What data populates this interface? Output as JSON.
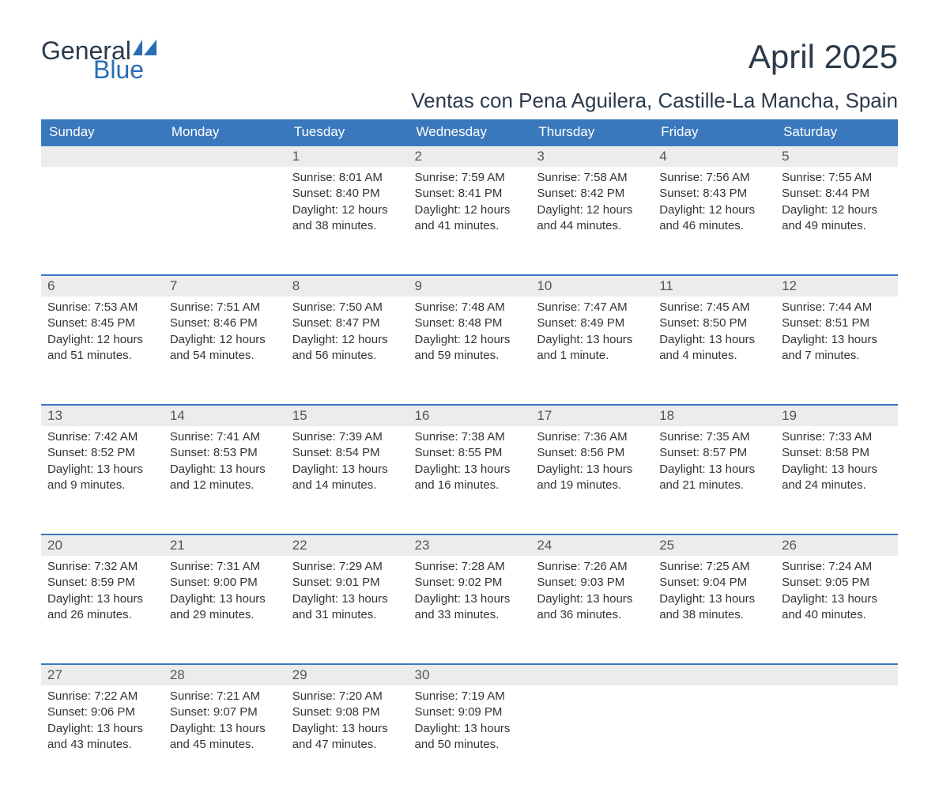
{
  "logo": {
    "textTop": "General",
    "textBottom": "Blue"
  },
  "title": "April 2025",
  "subtitle": "Ventas con Pena Aguilera, Castille-La Mancha, Spain",
  "colors": {
    "headerBg": "#3a78bd",
    "headerText": "#ffffff",
    "dayBarBg": "#ececec",
    "dayBarBorder": "#3a78bd",
    "bodyText": "#333333",
    "logoDark": "#2b3a4a",
    "logoBlue": "#2a6db6"
  },
  "fontsize": {
    "title": 42,
    "subtitle": 26,
    "header": 17,
    "daynum": 17,
    "body": 15
  },
  "weekdays": [
    "Sunday",
    "Monday",
    "Tuesday",
    "Wednesday",
    "Thursday",
    "Friday",
    "Saturday"
  ],
  "weeks": [
    [
      {
        "day": "",
        "lines": [
          "",
          "",
          "",
          ""
        ]
      },
      {
        "day": "",
        "lines": [
          "",
          "",
          "",
          ""
        ]
      },
      {
        "day": "1",
        "lines": [
          "Sunrise: 8:01 AM",
          "Sunset: 8:40 PM",
          "Daylight: 12 hours",
          "and 38 minutes."
        ]
      },
      {
        "day": "2",
        "lines": [
          "Sunrise: 7:59 AM",
          "Sunset: 8:41 PM",
          "Daylight: 12 hours",
          "and 41 minutes."
        ]
      },
      {
        "day": "3",
        "lines": [
          "Sunrise: 7:58 AM",
          "Sunset: 8:42 PM",
          "Daylight: 12 hours",
          "and 44 minutes."
        ]
      },
      {
        "day": "4",
        "lines": [
          "Sunrise: 7:56 AM",
          "Sunset: 8:43 PM",
          "Daylight: 12 hours",
          "and 46 minutes."
        ]
      },
      {
        "day": "5",
        "lines": [
          "Sunrise: 7:55 AM",
          "Sunset: 8:44 PM",
          "Daylight: 12 hours",
          "and 49 minutes."
        ]
      }
    ],
    [
      {
        "day": "6",
        "lines": [
          "Sunrise: 7:53 AM",
          "Sunset: 8:45 PM",
          "Daylight: 12 hours",
          "and 51 minutes."
        ]
      },
      {
        "day": "7",
        "lines": [
          "Sunrise: 7:51 AM",
          "Sunset: 8:46 PM",
          "Daylight: 12 hours",
          "and 54 minutes."
        ]
      },
      {
        "day": "8",
        "lines": [
          "Sunrise: 7:50 AM",
          "Sunset: 8:47 PM",
          "Daylight: 12 hours",
          "and 56 minutes."
        ]
      },
      {
        "day": "9",
        "lines": [
          "Sunrise: 7:48 AM",
          "Sunset: 8:48 PM",
          "Daylight: 12 hours",
          "and 59 minutes."
        ]
      },
      {
        "day": "10",
        "lines": [
          "Sunrise: 7:47 AM",
          "Sunset: 8:49 PM",
          "Daylight: 13 hours",
          "and 1 minute."
        ]
      },
      {
        "day": "11",
        "lines": [
          "Sunrise: 7:45 AM",
          "Sunset: 8:50 PM",
          "Daylight: 13 hours",
          "and 4 minutes."
        ]
      },
      {
        "day": "12",
        "lines": [
          "Sunrise: 7:44 AM",
          "Sunset: 8:51 PM",
          "Daylight: 13 hours",
          "and 7 minutes."
        ]
      }
    ],
    [
      {
        "day": "13",
        "lines": [
          "Sunrise: 7:42 AM",
          "Sunset: 8:52 PM",
          "Daylight: 13 hours",
          "and 9 minutes."
        ]
      },
      {
        "day": "14",
        "lines": [
          "Sunrise: 7:41 AM",
          "Sunset: 8:53 PM",
          "Daylight: 13 hours",
          "and 12 minutes."
        ]
      },
      {
        "day": "15",
        "lines": [
          "Sunrise: 7:39 AM",
          "Sunset: 8:54 PM",
          "Daylight: 13 hours",
          "and 14 minutes."
        ]
      },
      {
        "day": "16",
        "lines": [
          "Sunrise: 7:38 AM",
          "Sunset: 8:55 PM",
          "Daylight: 13 hours",
          "and 16 minutes."
        ]
      },
      {
        "day": "17",
        "lines": [
          "Sunrise: 7:36 AM",
          "Sunset: 8:56 PM",
          "Daylight: 13 hours",
          "and 19 minutes."
        ]
      },
      {
        "day": "18",
        "lines": [
          "Sunrise: 7:35 AM",
          "Sunset: 8:57 PM",
          "Daylight: 13 hours",
          "and 21 minutes."
        ]
      },
      {
        "day": "19",
        "lines": [
          "Sunrise: 7:33 AM",
          "Sunset: 8:58 PM",
          "Daylight: 13 hours",
          "and 24 minutes."
        ]
      }
    ],
    [
      {
        "day": "20",
        "lines": [
          "Sunrise: 7:32 AM",
          "Sunset: 8:59 PM",
          "Daylight: 13 hours",
          "and 26 minutes."
        ]
      },
      {
        "day": "21",
        "lines": [
          "Sunrise: 7:31 AM",
          "Sunset: 9:00 PM",
          "Daylight: 13 hours",
          "and 29 minutes."
        ]
      },
      {
        "day": "22",
        "lines": [
          "Sunrise: 7:29 AM",
          "Sunset: 9:01 PM",
          "Daylight: 13 hours",
          "and 31 minutes."
        ]
      },
      {
        "day": "23",
        "lines": [
          "Sunrise: 7:28 AM",
          "Sunset: 9:02 PM",
          "Daylight: 13 hours",
          "and 33 minutes."
        ]
      },
      {
        "day": "24",
        "lines": [
          "Sunrise: 7:26 AM",
          "Sunset: 9:03 PM",
          "Daylight: 13 hours",
          "and 36 minutes."
        ]
      },
      {
        "day": "25",
        "lines": [
          "Sunrise: 7:25 AM",
          "Sunset: 9:04 PM",
          "Daylight: 13 hours",
          "and 38 minutes."
        ]
      },
      {
        "day": "26",
        "lines": [
          "Sunrise: 7:24 AM",
          "Sunset: 9:05 PM",
          "Daylight: 13 hours",
          "and 40 minutes."
        ]
      }
    ],
    [
      {
        "day": "27",
        "lines": [
          "Sunrise: 7:22 AM",
          "Sunset: 9:06 PM",
          "Daylight: 13 hours",
          "and 43 minutes."
        ]
      },
      {
        "day": "28",
        "lines": [
          "Sunrise: 7:21 AM",
          "Sunset: 9:07 PM",
          "Daylight: 13 hours",
          "and 45 minutes."
        ]
      },
      {
        "day": "29",
        "lines": [
          "Sunrise: 7:20 AM",
          "Sunset: 9:08 PM",
          "Daylight: 13 hours",
          "and 47 minutes."
        ]
      },
      {
        "day": "30",
        "lines": [
          "Sunrise: 7:19 AM",
          "Sunset: 9:09 PM",
          "Daylight: 13 hours",
          "and 50 minutes."
        ]
      },
      {
        "day": "",
        "lines": [
          "",
          "",
          "",
          ""
        ]
      },
      {
        "day": "",
        "lines": [
          "",
          "",
          "",
          ""
        ]
      },
      {
        "day": "",
        "lines": [
          "",
          "",
          "",
          ""
        ]
      }
    ]
  ]
}
